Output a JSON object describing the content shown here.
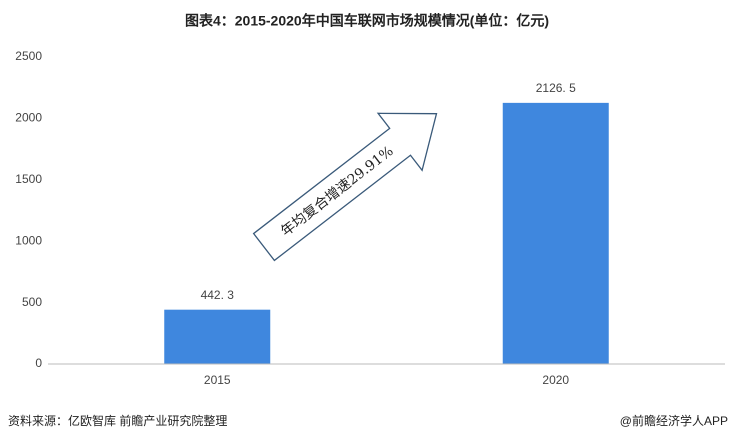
{
  "chart_data": {
    "type": "bar",
    "title": "图表4：2015-2020年中国车联网市场规模情况(单位：亿元)",
    "categories": [
      "2015",
      "2020"
    ],
    "values": [
      442.3,
      2126.5
    ],
    "value_labels": [
      "442. 3",
      "2126. 5"
    ],
    "color": "#3f87de",
    "ylim": [
      0,
      2500
    ],
    "yticks": [
      0,
      500,
      1000,
      1500,
      2000,
      2500
    ],
    "grid": false,
    "annotation": "年均复合增速29.91%",
    "source": "资料来源：亿欧智库 前瞻产业研究院整理",
    "credit": "@前瞻经济学人APP"
  }
}
